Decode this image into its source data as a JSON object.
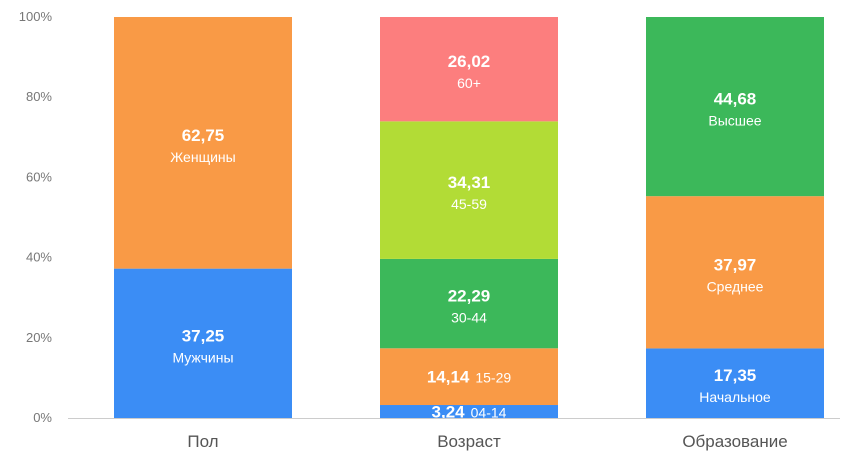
{
  "chart_data": {
    "type": "bar",
    "stacked": true,
    "ylim": [
      0,
      100
    ],
    "y_ticks": [
      "0%",
      "20%",
      "40%",
      "60%",
      "80%",
      "100%"
    ],
    "y_tick_values": [
      0,
      20,
      40,
      60,
      80,
      100
    ],
    "grid": false,
    "legend": "none",
    "categories": [
      "Пол",
      "Возраст",
      "Образование"
    ],
    "stacks": [
      {
        "category": "Пол",
        "segments": [
          {
            "name": "Мужчины",
            "value": 37.25,
            "value_label": "37,25",
            "color": "#3b8df5",
            "label_inline": false
          },
          {
            "name": "Женщины",
            "value": 62.75,
            "value_label": "62,75",
            "color": "#f99a46",
            "label_inline": false
          }
        ]
      },
      {
        "category": "Возраст",
        "segments": [
          {
            "name": "04-14",
            "value": 3.24,
            "value_label": "3,24",
            "color": "#3b8df5",
            "label_inline": true
          },
          {
            "name": "15-29",
            "value": 14.14,
            "value_label": "14,14",
            "color": "#f99a46",
            "label_inline": true
          },
          {
            "name": "30-44",
            "value": 22.29,
            "value_label": "22,29",
            "color": "#3cb85a",
            "label_inline": false
          },
          {
            "name": "45-59",
            "value": 34.31,
            "value_label": "34,31",
            "color": "#b2dc36",
            "label_inline": false
          },
          {
            "name": "60+",
            "value": 26.02,
            "value_label": "26,02",
            "color": "#fc7e7e",
            "label_inline": false
          }
        ]
      },
      {
        "category": "Образование",
        "segments": [
          {
            "name": "Начальное",
            "value": 17.35,
            "value_label": "17,35",
            "color": "#3b8df5",
            "label_inline": false
          },
          {
            "name": "Среднее",
            "value": 37.97,
            "value_label": "37,97",
            "color": "#f99a46",
            "label_inline": false
          },
          {
            "name": "Высшее",
            "value": 44.68,
            "value_label": "44,68",
            "color": "#3cb85a",
            "label_inline": false
          }
        ]
      }
    ]
  }
}
